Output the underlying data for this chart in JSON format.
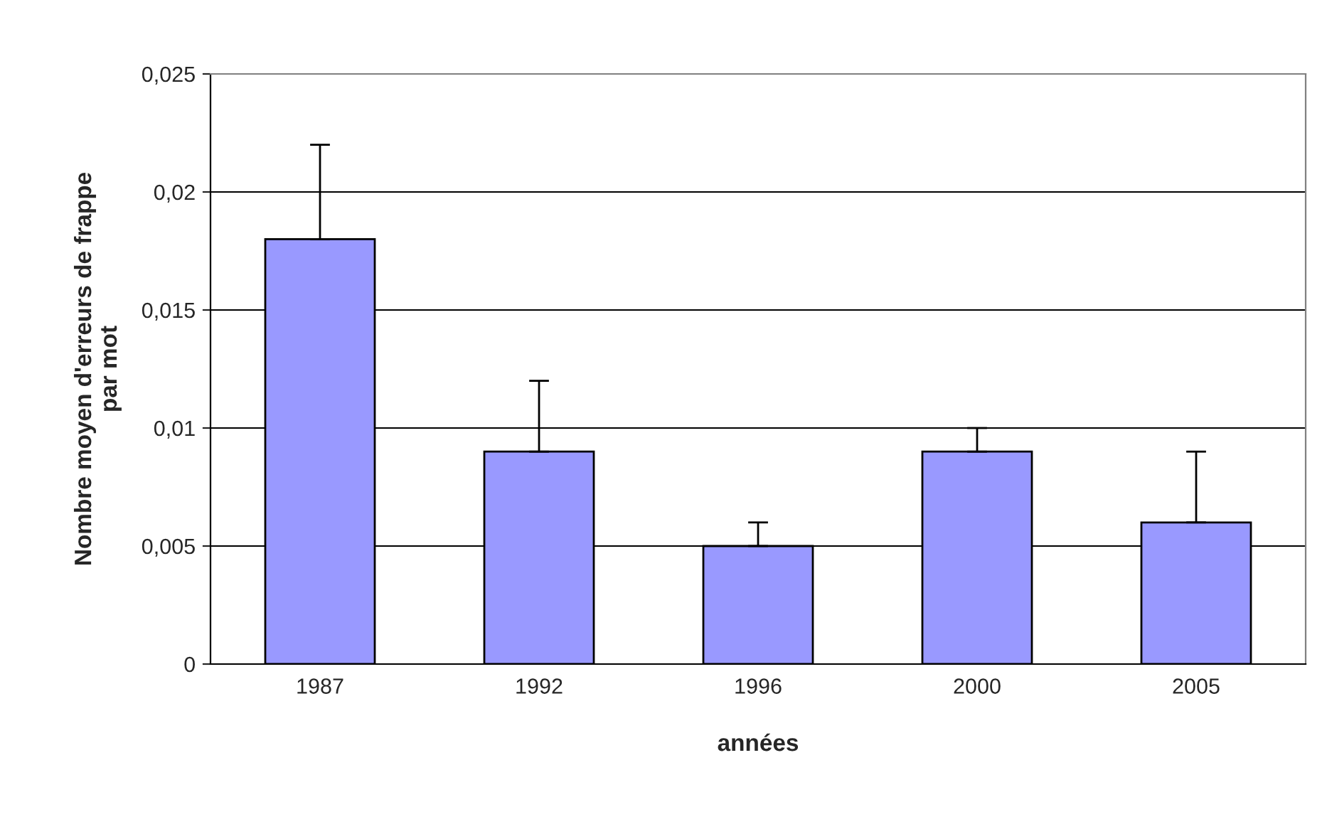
{
  "chart_data": {
    "type": "bar",
    "categories": [
      "1987",
      "1992",
      "1996",
      "2000",
      "2005"
    ],
    "values": [
      0.018,
      0.009,
      0.005,
      0.009,
      0.006
    ],
    "errors": [
      [
        0.018,
        0.022
      ],
      [
        0.009,
        0.012
      ],
      [
        0.005,
        0.006
      ],
      [
        0.009,
        0.01
      ],
      [
        0.006,
        0.009
      ]
    ],
    "color": "#9999ff",
    "xlabel": "années",
    "ylabel": "Nombre moyen d'erreurs de frappe\npar mot",
    "ylim": [
      0,
      0.025
    ],
    "yticks": [
      {
        "value": 0,
        "label": "0"
      },
      {
        "value": 0.005,
        "label": "0,005"
      },
      {
        "value": 0.01,
        "label": "0,01"
      },
      {
        "value": 0.015,
        "label": "0,015"
      },
      {
        "value": 0.02,
        "label": "0,02"
      },
      {
        "value": 0.025,
        "label": "0,025"
      }
    ],
    "grid": "y",
    "legend": false
  }
}
